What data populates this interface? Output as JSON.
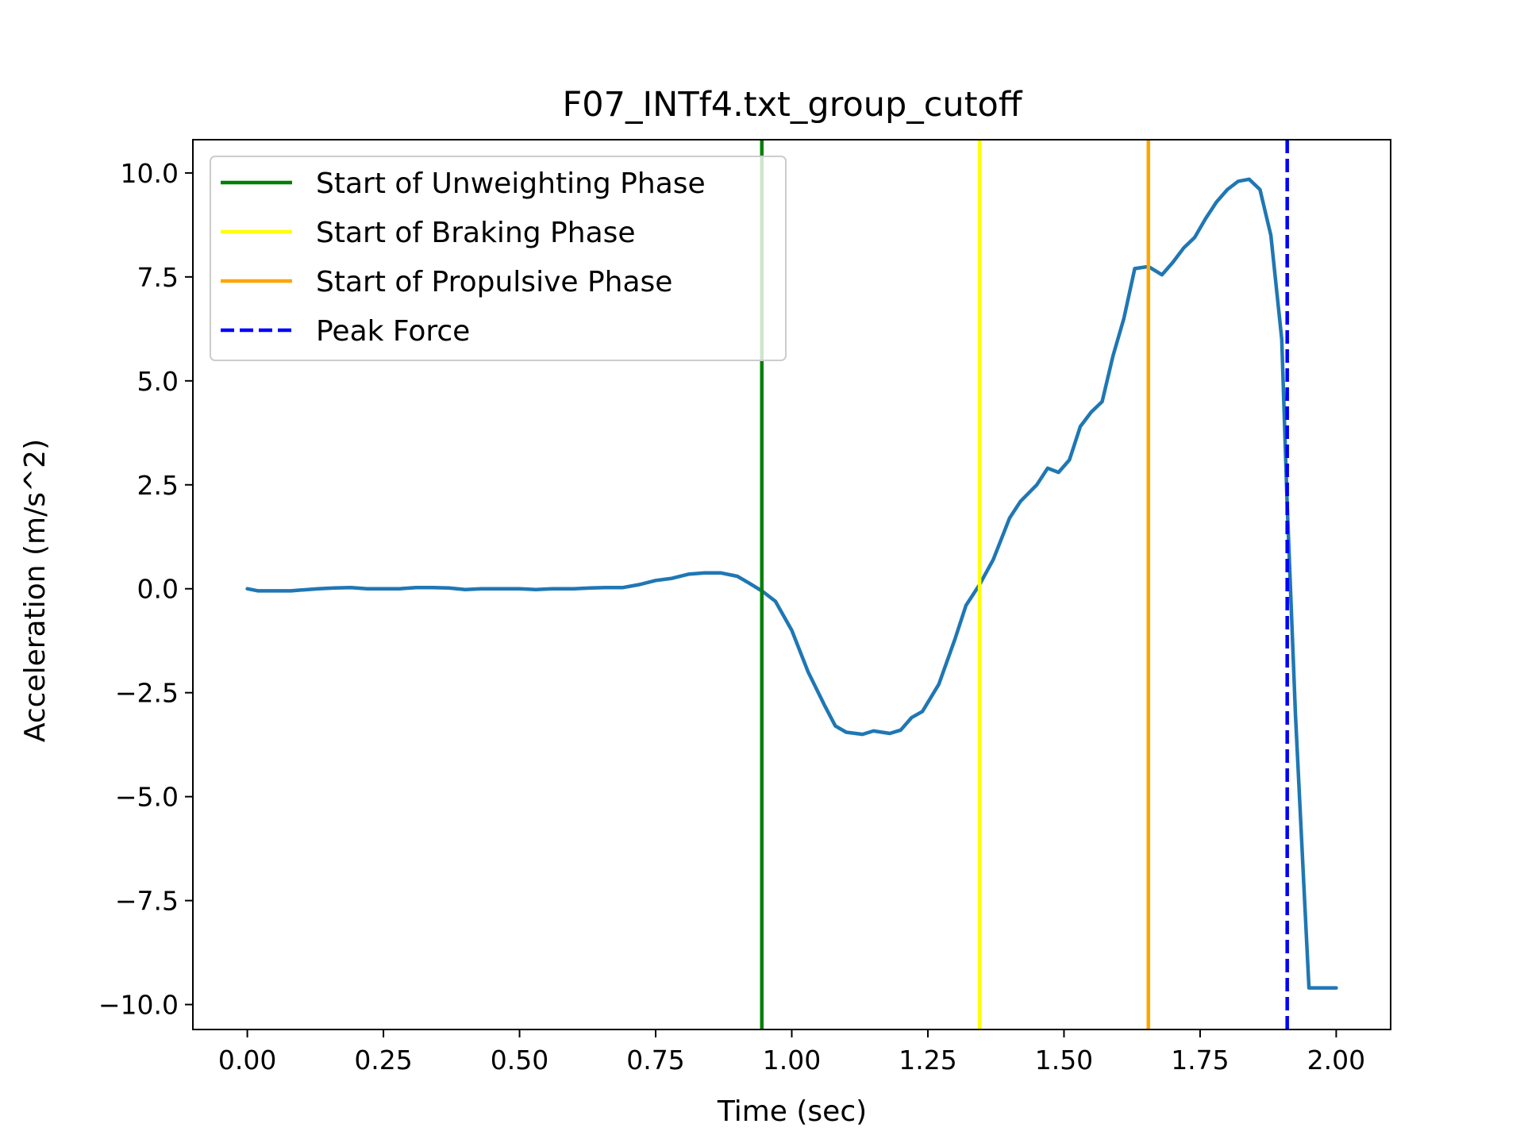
{
  "chart_data": {
    "type": "line",
    "title": "F07_INTf4.txt_group_cutoff",
    "xlabel": "Time (sec)",
    "ylabel": "Acceleration (m/s^2)",
    "xlim": [
      -0.1,
      2.1
    ],
    "ylim": [
      -10.6,
      10.8
    ],
    "xticks": [
      0.0,
      0.25,
      0.5,
      0.75,
      1.0,
      1.25,
      1.5,
      1.75,
      2.0
    ],
    "xtick_labels": [
      "0.00",
      "0.25",
      "0.50",
      "0.75",
      "1.00",
      "1.25",
      "1.50",
      "1.75",
      "2.00"
    ],
    "yticks": [
      10.0,
      7.5,
      5.0,
      2.5,
      0.0,
      -2.5,
      -5.0,
      -7.5,
      -10.0
    ],
    "ytick_labels": [
      "10.0",
      "7.5",
      "5.0",
      "2.5",
      "0.0",
      "−2.5",
      "−5.0",
      "−7.5",
      "−10.0"
    ],
    "grid": false,
    "legend_position": "top-left",
    "series": [
      {
        "name": "Acceleration",
        "color": "#1f77b4",
        "x": [
          0.0,
          0.02,
          0.05,
          0.08,
          0.1,
          0.13,
          0.16,
          0.19,
          0.22,
          0.25,
          0.28,
          0.31,
          0.34,
          0.37,
          0.4,
          0.43,
          0.46,
          0.5,
          0.53,
          0.56,
          0.6,
          0.63,
          0.66,
          0.69,
          0.72,
          0.75,
          0.78,
          0.81,
          0.84,
          0.87,
          0.9,
          0.92,
          0.945,
          0.97,
          1.0,
          1.03,
          1.06,
          1.08,
          1.1,
          1.13,
          1.15,
          1.18,
          1.2,
          1.22,
          1.24,
          1.27,
          1.3,
          1.32,
          1.345,
          1.37,
          1.4,
          1.42,
          1.45,
          1.47,
          1.49,
          1.51,
          1.53,
          1.55,
          1.57,
          1.59,
          1.61,
          1.63,
          1.655,
          1.68,
          1.7,
          1.72,
          1.74,
          1.76,
          1.78,
          1.8,
          1.82,
          1.84,
          1.86,
          1.88,
          1.9,
          1.91,
          1.925,
          1.94,
          1.95,
          1.96,
          1.97,
          1.98,
          1.99,
          2.0
        ],
        "y": [
          0.0,
          -0.05,
          -0.05,
          -0.05,
          -0.03,
          0.0,
          0.02,
          0.03,
          0.0,
          0.0,
          0.0,
          0.03,
          0.03,
          0.02,
          -0.02,
          0.0,
          0.0,
          0.0,
          -0.02,
          0.0,
          0.0,
          0.02,
          0.03,
          0.03,
          0.1,
          0.2,
          0.25,
          0.35,
          0.38,
          0.38,
          0.3,
          0.15,
          -0.05,
          -0.3,
          -1.0,
          -2.0,
          -2.8,
          -3.3,
          -3.45,
          -3.5,
          -3.42,
          -3.48,
          -3.4,
          -3.1,
          -2.95,
          -2.3,
          -1.2,
          -0.4,
          0.1,
          0.7,
          1.7,
          2.1,
          2.5,
          2.9,
          2.8,
          3.1,
          3.9,
          4.25,
          4.5,
          5.6,
          6.5,
          7.7,
          7.75,
          7.55,
          7.85,
          8.2,
          8.45,
          8.9,
          9.3,
          9.6,
          9.8,
          9.85,
          9.6,
          8.5,
          6.0,
          2.0,
          -3.0,
          -7.0,
          -9.6,
          -9.6,
          -9.6,
          -9.6,
          -9.6,
          -9.6
        ]
      }
    ],
    "vlines": [
      {
        "name": "Start of Unweighting Phase",
        "x": 0.945,
        "color": "#008000",
        "style": "solid"
      },
      {
        "name": "Start of Braking Phase",
        "x": 1.345,
        "color": "#ffff00",
        "style": "solid"
      },
      {
        "name": "Start of Propulsive Phase",
        "x": 1.655,
        "color": "#ffa500",
        "style": "solid"
      },
      {
        "name": "Peak Force",
        "x": 1.91,
        "color": "#0000ff",
        "style": "dashed"
      }
    ]
  }
}
